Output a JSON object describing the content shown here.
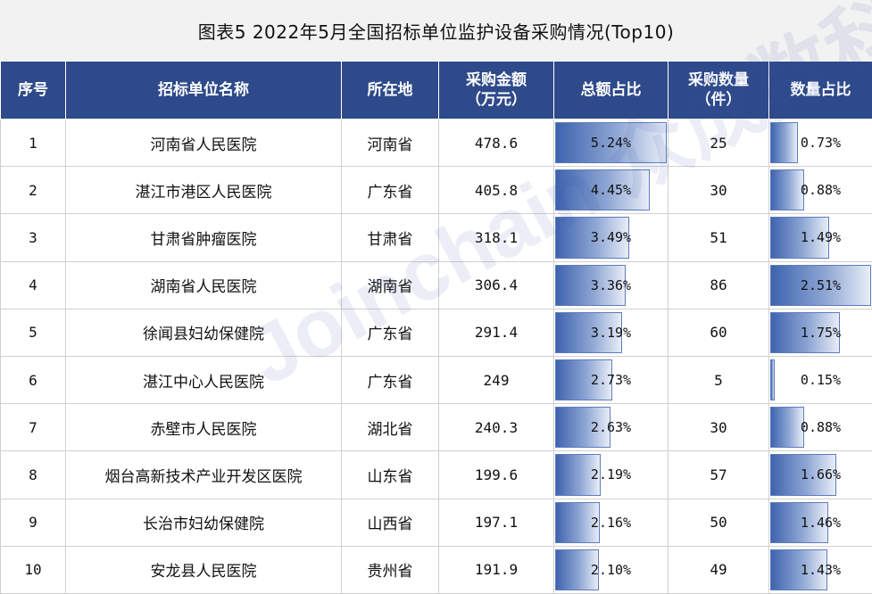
{
  "title": "图表5   2022年5月全国招标单位监护设备采购情况(Top10)",
  "headers": {
    "index": "序号",
    "name": "招标单位名称",
    "location": "所在地",
    "amount": "采购金额\n（万元）",
    "amount_share": "总额占比",
    "quantity": "采购数量\n（件）",
    "quantity_share": "数量占比"
  },
  "rows": [
    {
      "index": "1",
      "name": "河南省人民医院",
      "location": "河南省",
      "amount": "478.6",
      "amount_share": "5.24%",
      "amount_share_value": 5.24,
      "quantity": "25",
      "quantity_share": "0.73%",
      "quantity_share_value": 0.73
    },
    {
      "index": "2",
      "name": "湛江市港区人民医院",
      "location": "广东省",
      "amount": "405.8",
      "amount_share": "4.45%",
      "amount_share_value": 4.45,
      "quantity": "30",
      "quantity_share": "0.88%",
      "quantity_share_value": 0.88
    },
    {
      "index": "3",
      "name": "甘肃省肿瘤医院",
      "location": "甘肃省",
      "amount": "318.1",
      "amount_share": "3.49%",
      "amount_share_value": 3.49,
      "quantity": "51",
      "quantity_share": "1.49%",
      "quantity_share_value": 1.49
    },
    {
      "index": "4",
      "name": "湖南省人民医院",
      "location": "湖南省",
      "amount": "306.4",
      "amount_share": "3.36%",
      "amount_share_value": 3.36,
      "quantity": "86",
      "quantity_share": "2.51%",
      "quantity_share_value": 2.51
    },
    {
      "index": "5",
      "name": "徐闻县妇幼保健院",
      "location": "广东省",
      "amount": "291.4",
      "amount_share": "3.19%",
      "amount_share_value": 3.19,
      "quantity": "60",
      "quantity_share": "1.75%",
      "quantity_share_value": 1.75
    },
    {
      "index": "6",
      "name": "湛江中心人民医院",
      "location": "广东省",
      "amount": "249",
      "amount_share": "2.73%",
      "amount_share_value": 2.73,
      "quantity": "5",
      "quantity_share": "0.15%",
      "quantity_share_value": 0.15
    },
    {
      "index": "7",
      "name": "赤壁市人民医院",
      "location": "湖北省",
      "amount": "240.3",
      "amount_share": "2.63%",
      "amount_share_value": 2.63,
      "quantity": "30",
      "quantity_share": "0.88%",
      "quantity_share_value": 0.88
    },
    {
      "index": "8",
      "name": "烟台高新技术产业开发区医院",
      "location": "山东省",
      "amount": "199.6",
      "amount_share": "2.19%",
      "amount_share_value": 2.19,
      "quantity": "57",
      "quantity_share": "1.66%",
      "quantity_share_value": 1.66
    },
    {
      "index": "9",
      "name": "长治市妇幼保健院",
      "location": "山西省",
      "amount": "197.1",
      "amount_share": "2.16%",
      "amount_share_value": 2.16,
      "quantity": "50",
      "quantity_share": "1.46%",
      "quantity_share_value": 1.46
    },
    {
      "index": "10",
      "name": "安龙县人民医院",
      "location": "贵州省",
      "amount": "191.9",
      "amount_share": "2.10%",
      "amount_share_value": 2.1,
      "quantity": "49",
      "quantity_share": "1.43%",
      "quantity_share_value": 1.43
    }
  ],
  "bar_max": {
    "amount_share": 5.24,
    "quantity_share": 2.51
  },
  "watermark": "Joinchain 众成数科",
  "colors": {
    "header_bg": "#2e4a8b",
    "header_text": "#ffffff",
    "bar": "#3e63ae",
    "title_bg": "#f2f2f2"
  }
}
